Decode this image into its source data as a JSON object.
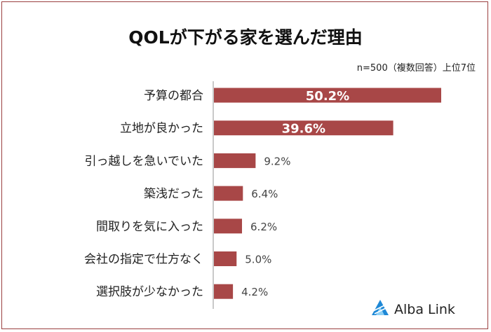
{
  "chart_data": {
    "type": "bar",
    "orientation": "horizontal",
    "title": "QOLが下がる家を選んだ理由",
    "note": "n=500（複数回答）上位7位",
    "categories": [
      "予算の都合",
      "立地が良かった",
      "引っ越しを急いでいた",
      "築浅だった",
      "間取りを気に入った",
      "会社の指定で仕方なく",
      "選択肢が少なかった"
    ],
    "values": [
      50.2,
      39.6,
      9.2,
      6.4,
      6.2,
      5.0,
      4.2
    ],
    "labels": [
      "50.2%",
      "39.6%",
      "9.2%",
      "6.4%",
      "6.2%",
      "5.0%",
      "4.2%"
    ],
    "xlim": [
      0,
      50.2
    ],
    "grid": false,
    "legend": "none"
  },
  "colors": {
    "bar": "#a84747",
    "axis": "#c9c9c9",
    "frame": "#9a3f3f",
    "logo": "#1e88d6"
  },
  "brand": {
    "name": "Alba Link",
    "icon": "alba-link-logo-icon"
  }
}
